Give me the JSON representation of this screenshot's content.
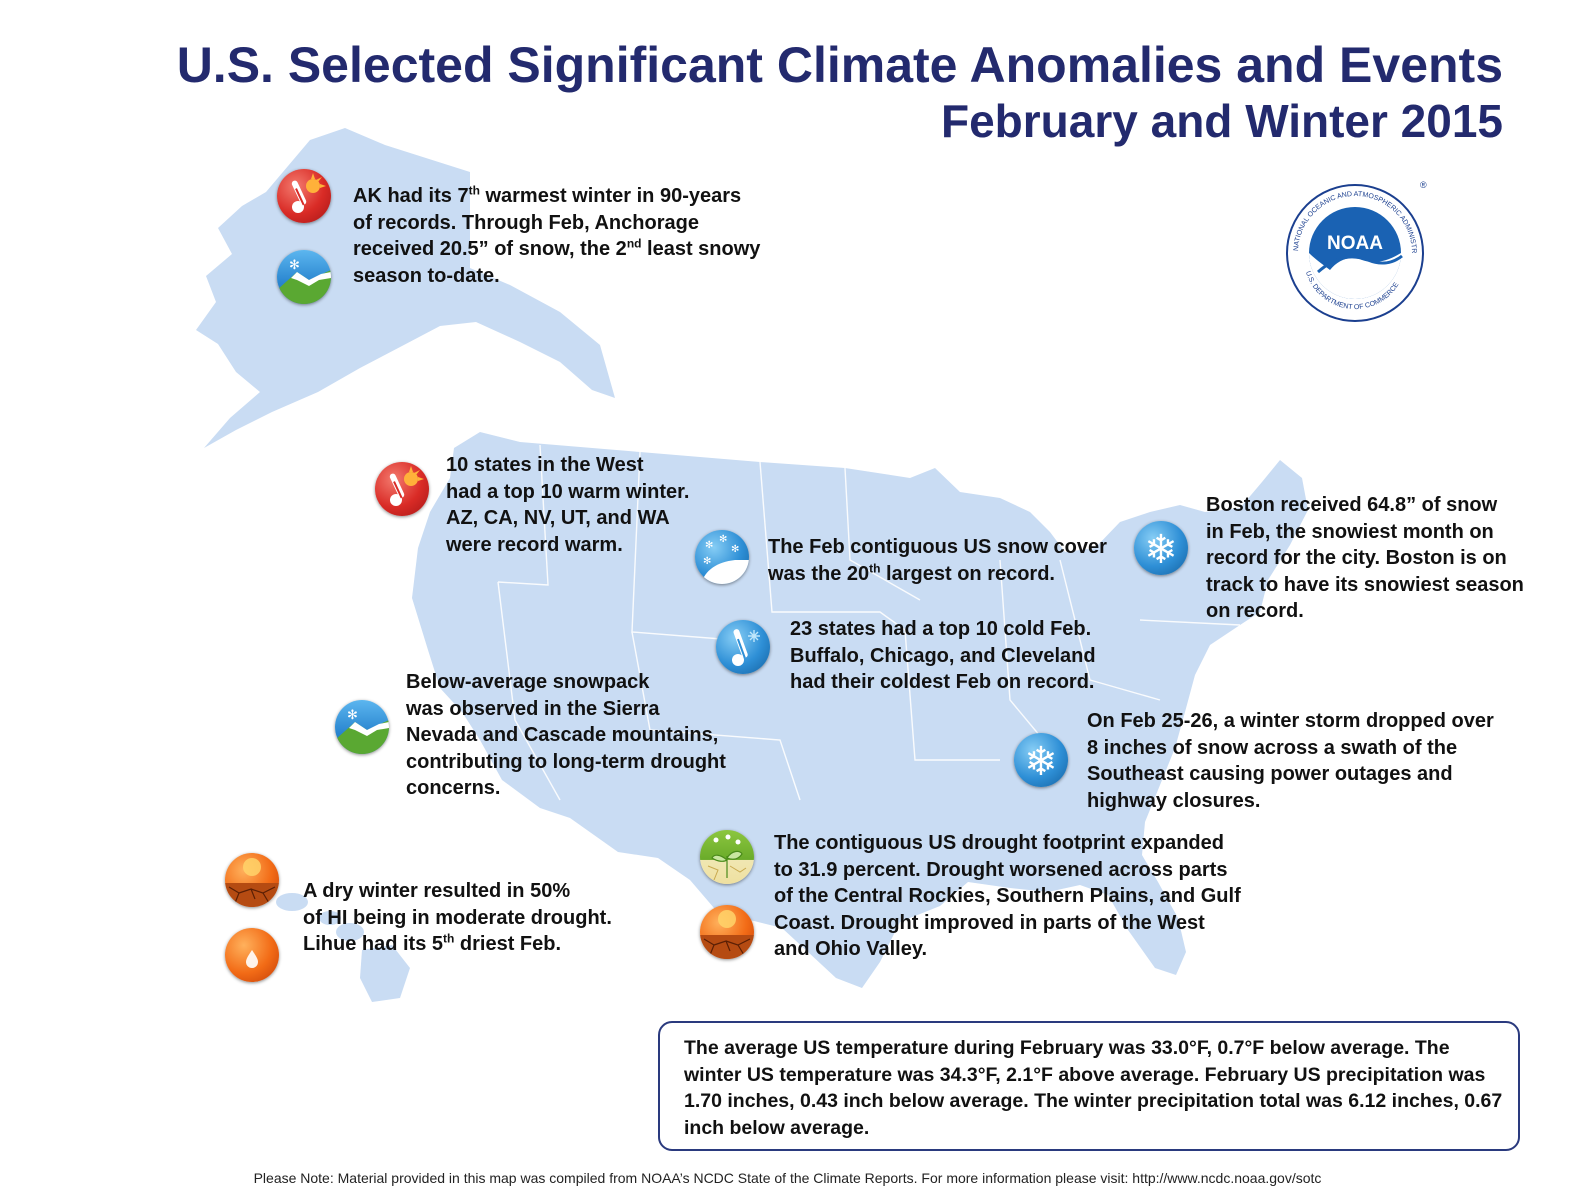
{
  "title_line1": "U.S. Selected Significant Climate Anomalies and Events",
  "title_line2": "February and Winter 2015",
  "logo": {
    "text": "NOAA",
    "ring_top": "NATIONAL OCEANIC AND ATMOSPHERIC ADMINISTRATION",
    "ring_bottom": "U.S. DEPARTMENT OF COMMERCE",
    "mark": "®"
  },
  "notes": {
    "alaska": {
      "icons": [
        "thermometer-hot-icon",
        "snowpack-icon"
      ],
      "html": "AK had its 7<sup>th</sup> warmest winter in 90-years<br>of records. Through Feb, Anchorage<br>received 20.5” of snow, the 2<sup>nd</sup> least snowy<br>season to-date."
    },
    "west": {
      "icons": [
        "thermometer-hot-icon"
      ],
      "html": "10 states in the West<br>had a top 10 warm winter.<br>AZ, CA, NV, UT, and WA<br>were record warm."
    },
    "snowcover": {
      "icons": [
        "snow-cover-icon"
      ],
      "html": "The Feb contiguous US snow cover<br>was the 20<sup>th</sup> largest on record."
    },
    "boston": {
      "icons": [
        "snowflake-icon"
      ],
      "html": "Boston received 64.8” of snow<br>in Feb, the snowiest month on<br>record for the city. Boston is on<br>track to have its snowiest season<br>on record."
    },
    "cold": {
      "icons": [
        "thermometer-cold-icon"
      ],
      "html": "23 states had a top 10 cold Feb.<br>Buffalo, Chicago, and Cleveland<br>had their coldest Feb on record."
    },
    "snowpack": {
      "icons": [
        "snowpack-icon"
      ],
      "html": "Below-average snowpack<br>was observed in the Sierra<br>Nevada and Cascade mountains,<br>contributing to long-term drought<br>concerns."
    },
    "southeast": {
      "icons": [
        "snowflake-icon"
      ],
      "html": "On Feb 25-26, a winter storm dropped over<br>8 inches of snow across a swath of the<br>Southeast causing power outages and<br>highway closures."
    },
    "drought": {
      "icons": [
        "drought-improve-icon",
        "drought-icon"
      ],
      "html": "The contiguous US drought footprint expanded<br>to 31.9 percent. Drought worsened across parts<br>of the Central Rockies, Southern Plains, and Gulf<br>Coast. Drought improved in parts of the West<br>and Ohio Valley."
    },
    "hawaii": {
      "icons": [
        "drought-icon",
        "dry-icon"
      ],
      "html": "A dry winter resulted in 50%<br>of HI being in moderate drought.<br>Lihue had its 5<sup>th</sup> driest Feb."
    }
  },
  "summary": "The average US temperature during February was 33.0°F, 0.7°F below average. The winter US temperature was 34.3°F, 2.1°F above average. February US precipitation was 1.70 inches, 0.43 inch below average. The winter precipitation total was 6.12 inches, 0.67 inch below average.",
  "footer": "Please Note: Material provided in this map was compiled from NOAA’s NCDC State of the Climate Reports. For more information please visit: http://www.ncdc.noaa.gov/sotc",
  "colors": {
    "title": "#232a6e",
    "land": "#c9dcf3",
    "border": "#ffffff",
    "summary_border": "#2a3a7e"
  }
}
